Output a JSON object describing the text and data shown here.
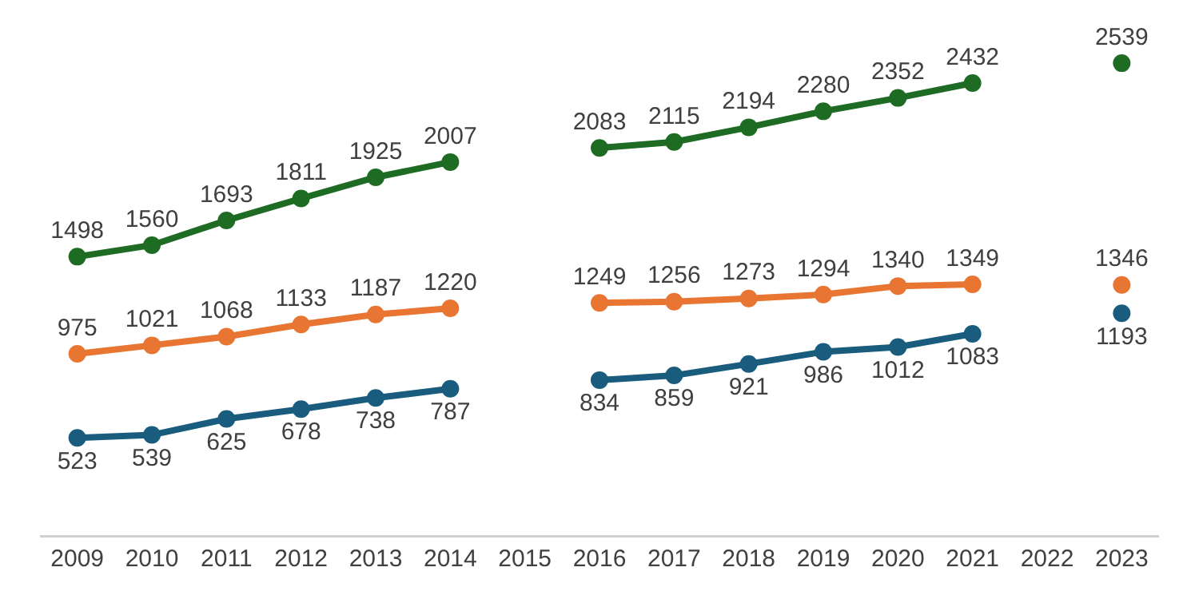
{
  "chart_data": {
    "type": "line",
    "categories": [
      "2009",
      "2010",
      "2011",
      "2012",
      "2013",
      "2014",
      "2015",
      "2016",
      "2017",
      "2018",
      "2019",
      "2020",
      "2021",
      "2022",
      "2023"
    ],
    "series": [
      {
        "color": "#1e6b24",
        "values": [
          1498,
          1560,
          1693,
          1811,
          1925,
          2007,
          null,
          2083,
          2115,
          2194,
          2280,
          2352,
          2432,
          null,
          2539
        ]
      },
      {
        "color": "#e87632",
        "values": [
          975,
          1021,
          1068,
          1133,
          1187,
          1220,
          null,
          1249,
          1256,
          1273,
          1294,
          1340,
          1349,
          null,
          1346
        ]
      },
      {
        "color": "#1a5c7e",
        "values": [
          523,
          539,
          625,
          678,
          738,
          787,
          null,
          834,
          859,
          921,
          986,
          1012,
          1083,
          null,
          1193
        ]
      }
    ],
    "data_labels": true,
    "marker": "circle",
    "line_style": "solid",
    "grid": false,
    "tick_labels": "x"
  }
}
